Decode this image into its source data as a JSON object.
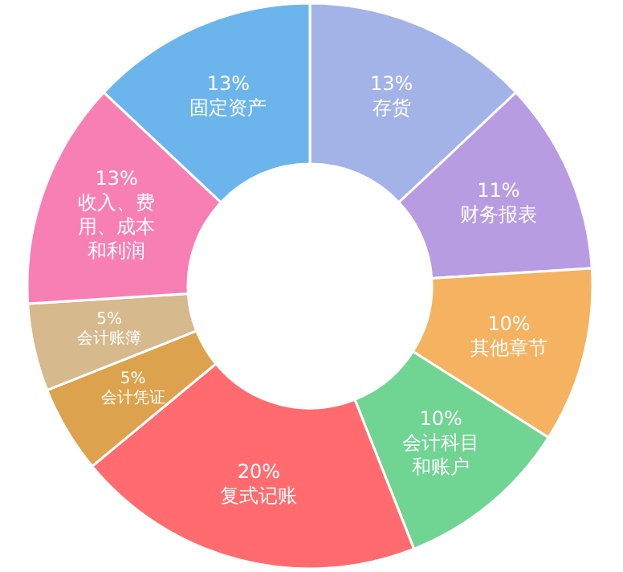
{
  "chart_data": {
    "type": "donut",
    "categories": [
      "存货",
      "财务报表",
      "其他章节",
      "会计科目和账户",
      "复式记账",
      "会计凭证",
      "会计账簿",
      "收入、费用、成本和利润",
      "固定资产"
    ],
    "values": [
      13,
      11,
      10,
      10,
      20,
      5,
      5,
      13,
      13
    ],
    "value_labels": [
      "13%",
      "11%",
      "10%",
      "10%",
      "20%",
      "5%",
      "5%",
      "13%",
      "13%"
    ],
    "colors": [
      "#a3b3e8",
      "#b89ce2",
      "#f5b260",
      "#70d492",
      "#ff6b6e",
      "#dca24e",
      "#d6b98c",
      "#f77fb4",
      "#6cb5ec"
    ]
  }
}
